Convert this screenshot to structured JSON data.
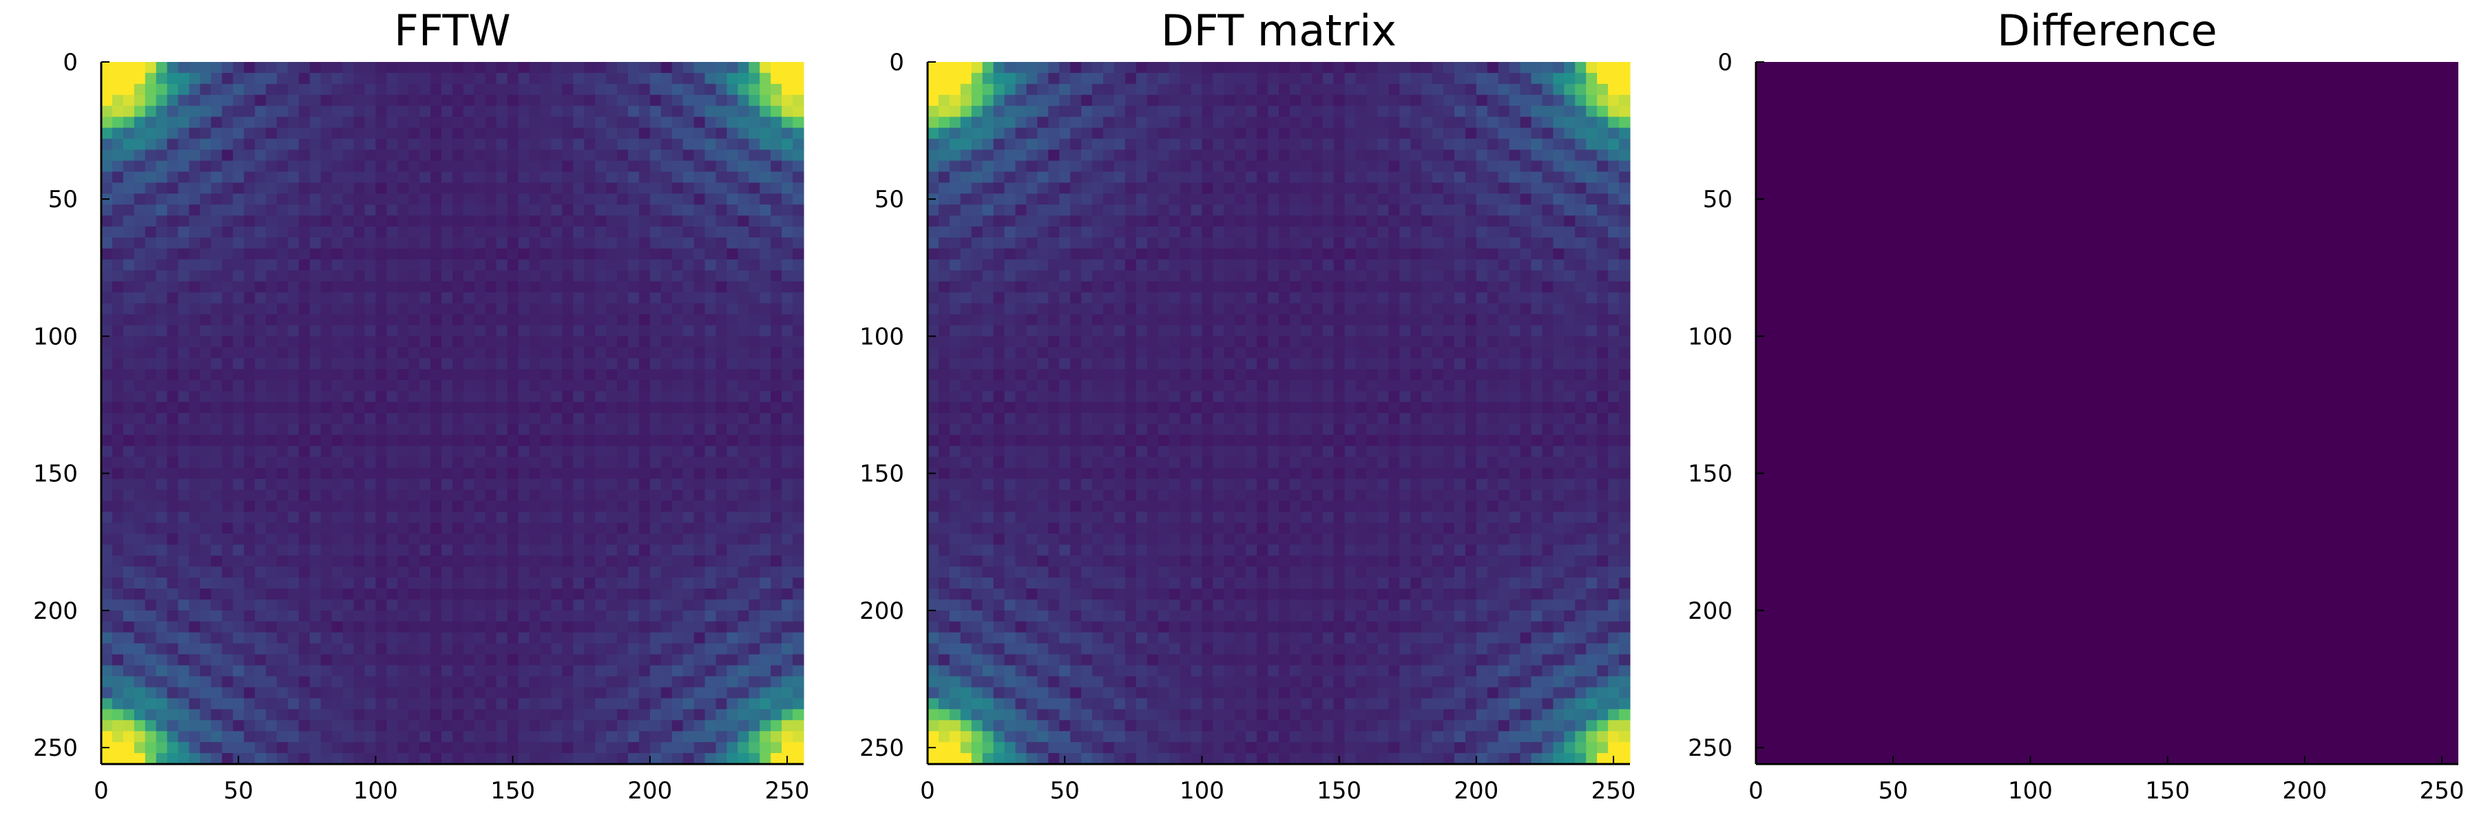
{
  "chart_data": [
    {
      "type": "heatmap",
      "title": "FFTW",
      "xlabel": "",
      "ylabel": "",
      "xlim": [
        0,
        256
      ],
      "ylim": [
        256,
        0
      ],
      "xticks": [
        0,
        50,
        100,
        150,
        200,
        250
      ],
      "yticks": [
        0,
        50,
        100,
        150,
        200,
        250
      ],
      "colormap": "viridis",
      "pattern": "fft-magnitude",
      "grid": false
    },
    {
      "type": "heatmap",
      "title": "DFT matrix",
      "xlabel": "",
      "ylabel": "",
      "xlim": [
        0,
        256
      ],
      "ylim": [
        256,
        0
      ],
      "xticks": [
        0,
        50,
        100,
        150,
        200,
        250
      ],
      "yticks": [
        0,
        50,
        100,
        150,
        200,
        250
      ],
      "colormap": "viridis",
      "pattern": "fft-magnitude",
      "grid": false
    },
    {
      "type": "heatmap",
      "title": "Difference",
      "xlabel": "",
      "ylabel": "",
      "xlim": [
        0,
        256
      ],
      "ylim": [
        256,
        0
      ],
      "xticks": [
        0,
        50,
        100,
        150,
        200,
        250
      ],
      "yticks": [
        0,
        50,
        100,
        150,
        200,
        250
      ],
      "colormap": "viridis",
      "pattern": "uniform-zero",
      "grid": false
    }
  ],
  "colors": {
    "viridis_low": "#440154",
    "viridis_mid_low": "#3b528b",
    "viridis_mid": "#21908d",
    "viridis_mid_high": "#5dc963",
    "viridis_high": "#fde725",
    "axis": "#000000"
  }
}
